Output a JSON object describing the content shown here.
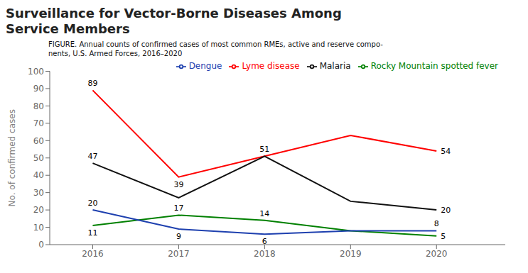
{
  "chart_data": {
    "type": "line",
    "title": "Surveillance for Vector-Borne Diseases Among\nService Members",
    "subtitle": "FIGURE. Annual counts of confirmed cases of most common RMEs, active and reserve compo-\nnents, U.S. Armed Forces, 2016–2020",
    "x": [
      2016,
      2017,
      2018,
      2019,
      2020
    ],
    "series": [
      {
        "name": "Lyme disease",
        "color": "#ff0000",
        "values": [
          89,
          39,
          51,
          63,
          54
        ],
        "value_labels": [
          "89",
          "39",
          "51",
          null,
          "54"
        ]
      },
      {
        "name": "Malaria",
        "color": "#111111",
        "values": [
          47,
          27,
          51,
          25,
          20
        ],
        "value_labels": [
          "47",
          null,
          null,
          null,
          "20"
        ]
      },
      {
        "name": "Rocky Mountain spotted fever",
        "color": "#008000",
        "values": [
          11,
          17,
          14,
          8,
          5
        ],
        "value_labels": [
          "11",
          "17",
          "14",
          null,
          "5"
        ]
      },
      {
        "name": "Dengue",
        "color": "#1e40af",
        "values": [
          20,
          9,
          6,
          8,
          8
        ],
        "value_labels": [
          "20",
          "9",
          "6",
          null,
          "8"
        ]
      }
    ],
    "xlim": [
      2015.5,
      2020.8
    ],
    "xticks": [
      2016,
      2017,
      2018,
      2019,
      2020
    ],
    "ylim": [
      0,
      100
    ],
    "yticks": [
      0,
      10,
      20,
      30,
      40,
      50,
      60,
      70,
      80,
      90,
      100
    ],
    "ylabel": "No. of confirmed cases",
    "legend": "upper right",
    "data_labels": true,
    "grid": false
  }
}
